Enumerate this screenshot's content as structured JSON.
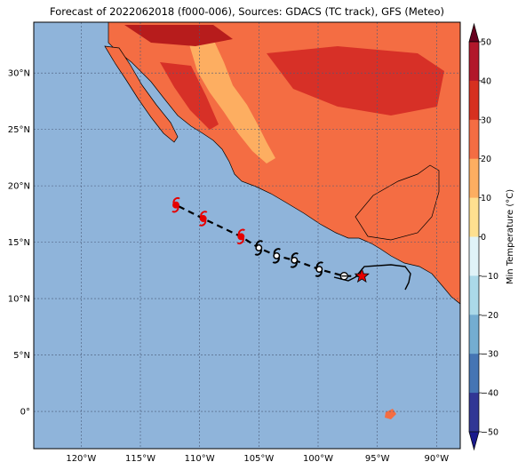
{
  "title": "Forecast of 2022062018 (f000-006), Sources: GDACS (TC track), GFS (Meteo)",
  "colors": {
    "ocean": "#8fb4da",
    "land_hot_dark": "#b71c1c",
    "land_hot": "#d73027",
    "land_warm": "#f46d43",
    "land_mild": "#fdae61",
    "track_line": "#000000",
    "forecast_symbol": "#e60000",
    "observed_symbol": "#000000",
    "current_position_star": "#e60000"
  },
  "map": {
    "lon_range": [
      -124,
      -88
    ],
    "lat_range": [
      -3.3,
      34.5
    ],
    "lon_ticks": [
      "120°W",
      "115°W",
      "110°W",
      "105°W",
      "100°W",
      "95°W",
      "90°W"
    ],
    "lat_ticks": [
      "0°",
      "5°N",
      "10°N",
      "15°N",
      "20°N",
      "25°N",
      "30°N"
    ],
    "gridlines": true
  },
  "storm_track": {
    "current_position": {
      "lon": -96.3,
      "lat": 12.0,
      "icon": "star-icon"
    },
    "symbols": [
      {
        "lon": -97.8,
        "lat": 12.0,
        "kind": "depression",
        "color": "#000000"
      },
      {
        "lon": -99.9,
        "lat": 12.6,
        "kind": "tropical-storm",
        "color": "#000000"
      },
      {
        "lon": -102.0,
        "lat": 13.4,
        "kind": "tropical-storm",
        "color": "#000000"
      },
      {
        "lon": -103.5,
        "lat": 13.8,
        "kind": "tropical-storm",
        "color": "#000000"
      },
      {
        "lon": -105.0,
        "lat": 14.5,
        "kind": "tropical-storm",
        "color": "#000000"
      },
      {
        "lon": -106.5,
        "lat": 15.5,
        "kind": "hurricane",
        "color": "#e60000"
      },
      {
        "lon": -109.7,
        "lat": 17.1,
        "kind": "hurricane",
        "color": "#e60000"
      },
      {
        "lon": -112.0,
        "lat": 18.3,
        "kind": "hurricane",
        "color": "#e60000"
      }
    ]
  },
  "colorbar": {
    "label": "Min Temperature (°C)",
    "ticks": [
      "50",
      "40",
      "30",
      "20",
      "10",
      "0",
      "−10",
      "−20",
      "−30",
      "−40",
      "−50"
    ],
    "colors": [
      "#67001f",
      "#b2182b",
      "#d6301f",
      "#f46d43",
      "#fdae61",
      "#fee090",
      "#ffffbf",
      "#e0f3f8",
      "#abd9e9",
      "#74add1",
      "#4575b4",
      "#313695",
      "#1a1a8c"
    ]
  }
}
